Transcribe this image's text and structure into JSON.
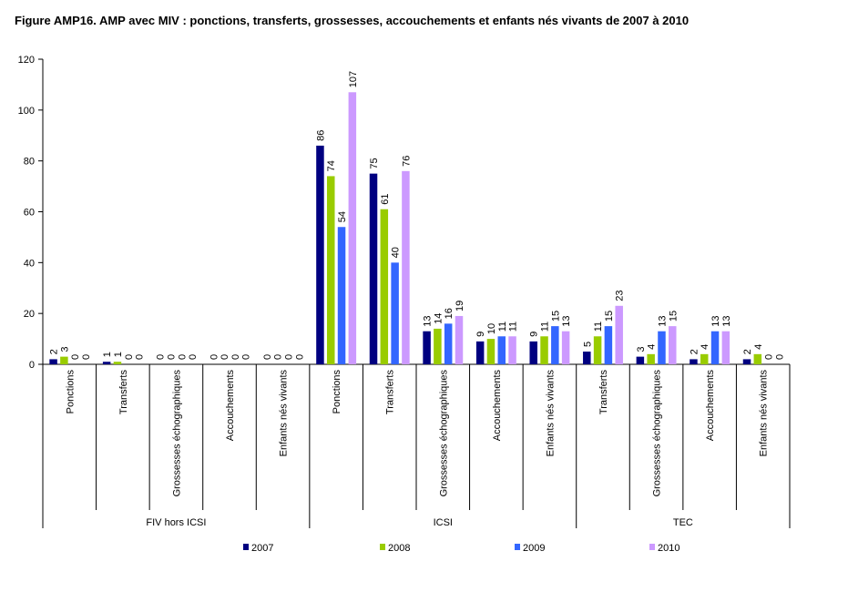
{
  "title": "Figure AMP16. AMP avec MIV : ponctions, transferts, grossesses, accouchements et enfants nés vivants de 2007 à 2010",
  "chart_data": {
    "type": "bar",
    "title": "Figure AMP16. AMP avec MIV : ponctions, transferts, grossesses, accouchements et enfants nés vivants de 2007 à 2010",
    "ylim": [
      0,
      120
    ],
    "yticks": [
      0,
      20,
      40,
      60,
      80,
      100,
      120
    ],
    "grid": false,
    "legend_position": "bottom",
    "groups": [
      {
        "label": "FIV hors ICSI",
        "categories": [
          "Ponctions",
          "Transferts",
          "Grossesses échographiques",
          "Accouchements",
          "Enfants nés vivants"
        ]
      },
      {
        "label": "ICSI",
        "categories": [
          "Ponctions",
          "Transferts",
          "Grossesses échographiques",
          "Accouchements",
          "Enfants nés vivants"
        ]
      },
      {
        "label": "TEC",
        "categories": [
          "Transferts",
          "Grossesses échographiques",
          "Accouchements",
          "Enfants nés vivants"
        ]
      }
    ],
    "series": [
      {
        "name": "2007",
        "color": "#000080",
        "values": [
          2,
          1,
          0,
          0,
          0,
          86,
          75,
          13,
          9,
          9,
          5,
          3,
          2,
          2
        ]
      },
      {
        "name": "2008",
        "color": "#99cc00",
        "values": [
          3,
          1,
          0,
          0,
          0,
          74,
          61,
          14,
          10,
          11,
          11,
          4,
          4,
          4
        ]
      },
      {
        "name": "2009",
        "color": "#3366ff",
        "values": [
          0,
          0,
          0,
          0,
          0,
          54,
          40,
          16,
          11,
          15,
          15,
          13,
          13,
          0
        ]
      },
      {
        "name": "2010",
        "color": "#cc99ff",
        "values": [
          0,
          0,
          0,
          0,
          0,
          107,
          76,
          19,
          11,
          13,
          23,
          15,
          13,
          0
        ]
      }
    ]
  }
}
